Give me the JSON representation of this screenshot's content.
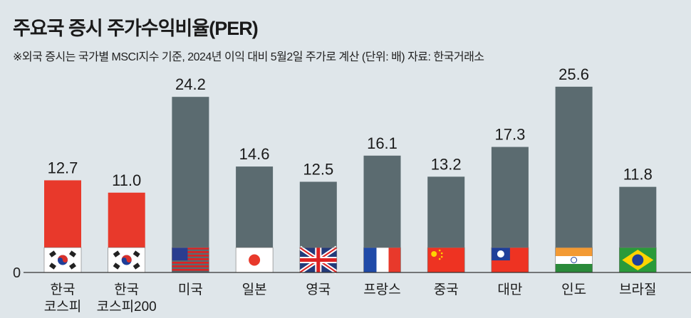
{
  "title": "주요국 증시 주가수익비율(PER)",
  "subtitle": "※외국 증시는 국가별 MSCI지수 기준, 2024년 이익 대비 5월2일 주가로 계산 (단위: 배)  자료: 한국거래소",
  "colors": {
    "korea": "#e8392b",
    "other": "#5b6b70",
    "background": "#dfe6ea"
  },
  "chart_data": {
    "type": "bar",
    "title": "주요국 증시 주가수익비율(PER)",
    "ylabel": "배",
    "ylim": [
      0,
      26
    ],
    "yticks": [
      "0"
    ],
    "categories": [
      [
        "한국",
        "코스피"
      ],
      [
        "한국",
        "코스피200"
      ],
      [
        "미국"
      ],
      [
        "일본"
      ],
      [
        "영국"
      ],
      [
        "프랑스"
      ],
      [
        "중국"
      ],
      [
        "대만"
      ],
      [
        "인도"
      ],
      [
        "브라질"
      ]
    ],
    "flags": [
      "korea",
      "korea",
      "usa",
      "japan",
      "uk",
      "france",
      "china",
      "taiwan",
      "india",
      "brazil"
    ],
    "values": [
      12.7,
      11.0,
      24.2,
      14.6,
      12.5,
      16.1,
      13.2,
      17.3,
      25.6,
      11.8
    ],
    "labels": [
      "12.7",
      "11.0",
      "24.2",
      "14.6",
      "12.5",
      "16.1",
      "13.2",
      "17.3",
      "25.6",
      "11.8"
    ]
  }
}
